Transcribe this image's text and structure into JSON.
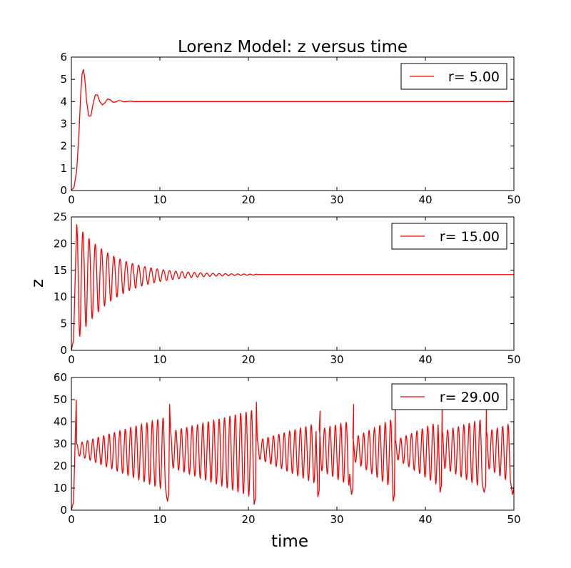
{
  "figure": {
    "title": "Lorenz Model: z versus time",
    "xlabel": "time",
    "ylabel": "z"
  },
  "chart_data": [
    {
      "type": "line",
      "title": "Lorenz Model: z versus time",
      "xlabel": "",
      "ylabel": "",
      "xlim": [
        0,
        50
      ],
      "ylim": [
        0,
        6
      ],
      "xticks": [
        0,
        10,
        20,
        30,
        40,
        50
      ],
      "yticks": [
        0,
        1,
        2,
        3,
        4,
        5,
        6
      ],
      "legend_position": "top-right",
      "color": "#ff0000",
      "series": [
        {
          "name": "r= 5.00",
          "x": [
            0,
            0.3,
            0.6,
            0.85,
            1.05,
            1.2,
            1.35,
            1.5,
            1.7,
            1.95,
            2.2,
            2.45,
            2.7,
            2.95,
            3.2,
            3.5,
            3.8,
            4.1,
            4.4,
            4.7,
            5.0,
            5.3,
            5.6,
            5.9,
            6.2,
            6.6,
            7.0,
            7.5,
            8,
            10,
            20,
            30,
            40,
            50
          ],
          "y": [
            0,
            0.15,
            0.9,
            2.5,
            4.3,
            5.2,
            5.45,
            5.1,
            4.1,
            3.35,
            3.35,
            3.9,
            4.3,
            4.3,
            4.0,
            3.85,
            3.95,
            4.12,
            4.08,
            3.97,
            3.98,
            4.04,
            4.03,
            3.99,
            4.0,
            4.02,
            4.0,
            4.0,
            4.0,
            4.0,
            4.0,
            4.0,
            4.0,
            4.0
          ]
        }
      ]
    },
    {
      "type": "line",
      "title": "",
      "xlabel": "",
      "ylabel": "z",
      "xlim": [
        0,
        50
      ],
      "ylim": [
        0,
        25
      ],
      "xticks": [
        0,
        10,
        20,
        30,
        40,
        50
      ],
      "yticks": [
        0,
        5,
        10,
        15,
        20,
        25
      ],
      "legend_position": "top-right",
      "color": "#ff0000",
      "osc": {
        "t_start": 0.6,
        "period": 0.7,
        "eq": 14.2,
        "amp_hi": 9.4,
        "amp_lo": 12.5,
        "decay": 0.24,
        "t_end": 21
      },
      "series": [
        {
          "name": "r= 15.00",
          "x": [
            0,
            0.25,
            0.5,
            0.6,
            50
          ],
          "y": [
            0,
            2,
            18,
            23.6,
            14.2
          ]
        }
      ]
    },
    {
      "type": "line",
      "title": "",
      "xlabel": "time",
      "ylabel": "",
      "xlim": [
        0,
        50
      ],
      "ylim": [
        0,
        60
      ],
      "xticks": [
        0,
        10,
        20,
        30,
        40,
        50
      ],
      "yticks": [
        0,
        10,
        20,
        30,
        40,
        50,
        60
      ],
      "legend_position": "top-right",
      "color": "#ff0000",
      "period": 0.61,
      "segments": [
        {
          "t0": 0.6,
          "t1": 11.0,
          "amp0": 2.5,
          "amp1": 17,
          "dip": 4,
          "next_peak": 48
        },
        {
          "t0": 11.2,
          "t1": 20.8,
          "amp0": 8,
          "amp1": 20,
          "dip": 2.5,
          "next_peak": 49
        },
        {
          "t0": 21.0,
          "t1": 28.0,
          "amp0": 4,
          "amp1": 14,
          "dip": 6,
          "next_peak": 45
        },
        {
          "t0": 28.0,
          "t1": 31.8,
          "amp0": 9,
          "amp1": 15,
          "dip": 7,
          "next_peak": 48
        },
        {
          "t0": 31.8,
          "t1": 36.5,
          "amp0": 5,
          "amp1": 16,
          "dip": 4,
          "next_peak": 49
        },
        {
          "t0": 36.6,
          "t1": 41.8,
          "amp0": 4,
          "amp1": 15,
          "dip": 8,
          "next_peak": 48
        },
        {
          "t0": 41.9,
          "t1": 46.8,
          "amp0": 8,
          "amp1": 16,
          "dip": 8,
          "next_peak": 49
        },
        {
          "t0": 46.9,
          "t1": 50,
          "amp0": 8,
          "amp1": 14,
          "dip": 7,
          "next_peak": 40
        }
      ],
      "series": [
        {
          "name": "r= 29.00",
          "x": [
            0,
            0.25,
            0.45,
            0.55
          ],
          "y": [
            0,
            4,
            35,
            50
          ]
        }
      ]
    }
  ]
}
